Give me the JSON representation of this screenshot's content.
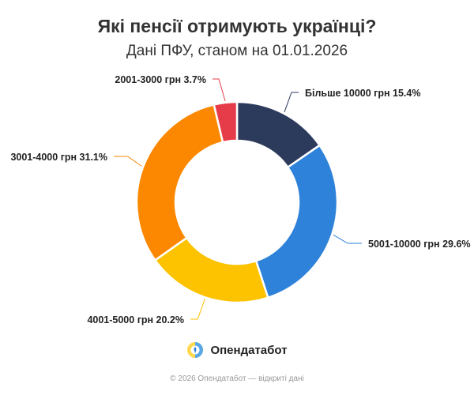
{
  "chart_data": {
    "type": "pie",
    "title": "Які пенсії отримують українці?",
    "subtitle": "Дані ПФУ, станом на 01.01.2026",
    "slices": [
      {
        "label": "Більше 10000 грн 15.4%",
        "value": 15.4,
        "color": "#2c3a5c"
      },
      {
        "label": "5001-10000 грн 29.6%",
        "value": 29.6,
        "color": "#2e82d9"
      },
      {
        "label": "4001-5000 грн 20.2%",
        "value": 20.2,
        "color": "#fdc200"
      },
      {
        "label": "3001-4000 грн 31.1%",
        "value": 31.1,
        "color": "#fb8800"
      },
      {
        "label": "2001-3000 грн 3.7%",
        "value": 3.7,
        "color": "#e63c4a"
      }
    ]
  },
  "logo": {
    "name": "Опендатабот",
    "icon": "opendatabot-logo-icon"
  },
  "footer": {
    "text": "© 2026 Опендатабот — відкриті дані"
  }
}
